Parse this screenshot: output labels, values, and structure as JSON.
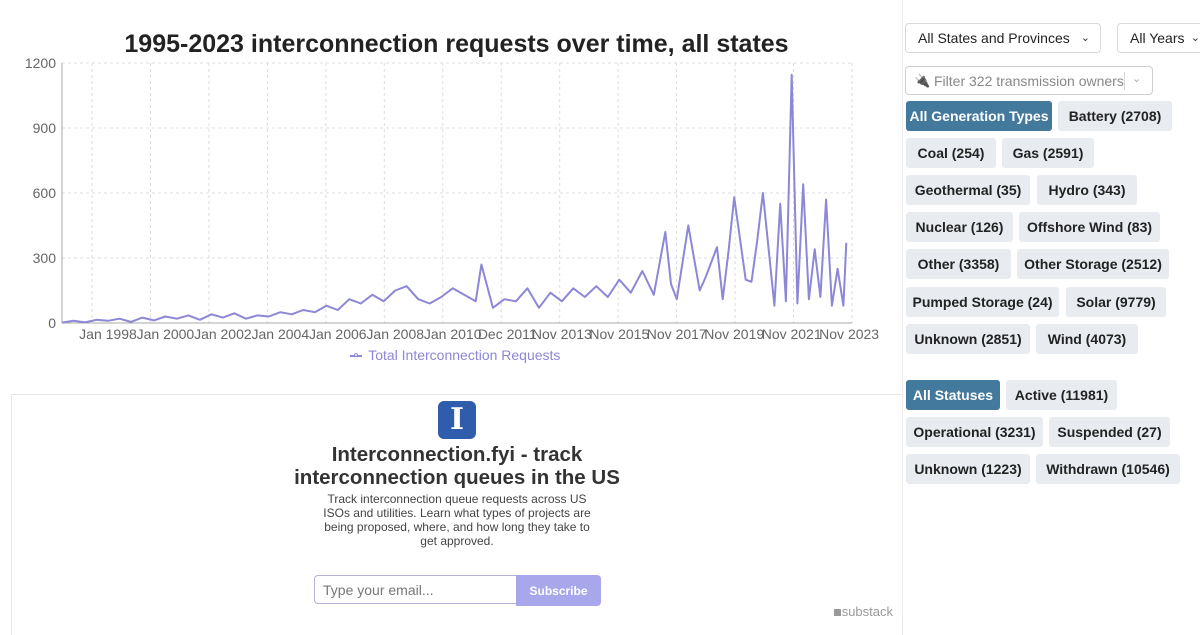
{
  "chart_data": {
    "type": "line",
    "title": "1995-2023 interconnection requests over time, all states",
    "xlabel": "",
    "ylabel": "",
    "ylim": [
      0,
      1200
    ],
    "yticks": [
      0,
      300,
      600,
      900,
      1200
    ],
    "xlim": [
      1996.4,
      2023.9
    ],
    "xticks": [
      {
        "label": "Jan 1998",
        "x": 1998.0
      },
      {
        "label": "Jan 2000",
        "x": 2000.0
      },
      {
        "label": "Jan 2002",
        "x": 2002.0
      },
      {
        "label": "Jan 2004",
        "x": 2004.0
      },
      {
        "label": "Jan 2006",
        "x": 2006.0
      },
      {
        "label": "Jan 2008",
        "x": 2008.0
      },
      {
        "label": "Jan 2010",
        "x": 2010.0
      },
      {
        "label": "Dec 2011",
        "x": 2011.9
      },
      {
        "label": "Nov 2013",
        "x": 2013.8
      },
      {
        "label": "Nov 2015",
        "x": 2015.8
      },
      {
        "label": "Nov 2017",
        "x": 2017.8
      },
      {
        "label": "Nov 2019",
        "x": 2019.8
      },
      {
        "label": "Nov 2021",
        "x": 2021.8
      },
      {
        "label": "Nov 2023",
        "x": 2023.8
      }
    ],
    "grid": true,
    "legend_position": "bottom",
    "series": [
      {
        "name": "Total Interconnection Requests",
        "color": "#8c87d6",
        "x": [
          1996.4,
          1996.8,
          1997.2,
          1997.6,
          1998.0,
          1998.4,
          1998.8,
          1999.2,
          1999.6,
          2000.0,
          2000.4,
          2000.8,
          2001.2,
          2001.6,
          2002.0,
          2002.4,
          2002.8,
          2003.2,
          2003.6,
          2004.0,
          2004.4,
          2004.8,
          2005.2,
          2005.6,
          2006.0,
          2006.4,
          2006.8,
          2007.2,
          2007.6,
          2008.0,
          2008.4,
          2008.8,
          2009.2,
          2009.6,
          2010.0,
          2010.4,
          2010.8,
          2011.0,
          2011.4,
          2011.8,
          2012.2,
          2012.6,
          2013.0,
          2013.4,
          2013.8,
          2014.2,
          2014.6,
          2015.0,
          2015.4,
          2015.8,
          2016.2,
          2016.6,
          2017.0,
          2017.4,
          2017.6,
          2017.8,
          2018.2,
          2018.6,
          2018.8,
          2019.2,
          2019.4,
          2019.6,
          2019.8,
          2020.2,
          2020.4,
          2020.6,
          2020.8,
          2021.2,
          2021.4,
          2021.6,
          2021.8,
          2022.0,
          2022.2,
          2022.4,
          2022.6,
          2022.8,
          2023.0,
          2023.2,
          2023.4,
          2023.6,
          2023.7
        ],
        "values": [
          2,
          10,
          3,
          15,
          10,
          20,
          5,
          25,
          12,
          30,
          20,
          35,
          15,
          40,
          25,
          45,
          20,
          35,
          30,
          50,
          40,
          60,
          50,
          80,
          60,
          110,
          90,
          130,
          100,
          150,
          170,
          110,
          90,
          120,
          160,
          130,
          100,
          270,
          70,
          110,
          100,
          160,
          70,
          140,
          100,
          160,
          120,
          170,
          120,
          200,
          140,
          240,
          130,
          420,
          180,
          110,
          450,
          150,
          210,
          350,
          110,
          330,
          580,
          200,
          190,
          380,
          600,
          80,
          550,
          100,
          1145,
          90,
          640,
          110,
          340,
          120,
          570,
          80,
          250,
          80,
          370
        ]
      }
    ]
  },
  "chart": {
    "title": "1995-2023 interconnection requests over time, all states",
    "legend_label": "Total Interconnection Requests"
  },
  "newsletter": {
    "logo_letter": "I",
    "title": "Interconnection.fyi - track interconnection queues in the US",
    "description": "Track interconnection queue requests across US ISOs and utilities. Learn what types of projects are being proposed, where, and how long they take to get approved.",
    "email_placeholder": "Type your email...",
    "subscribe_label": "Subscribe",
    "brand": "substack"
  },
  "filters": {
    "state_select": "All States and Provinces",
    "year_select": "All Years",
    "owner_filter_placeholder": "Filter 322 transmission owners",
    "generation_types": [
      {
        "label": "All Generation Types",
        "active": true
      },
      {
        "label": "Battery (2708)",
        "active": false
      },
      {
        "label": "Coal (254)",
        "active": false
      },
      {
        "label": "Gas (2591)",
        "active": false
      },
      {
        "label": "Geothermal (35)",
        "active": false
      },
      {
        "label": "Hydro (343)",
        "active": false
      },
      {
        "label": "Nuclear (126)",
        "active": false
      },
      {
        "label": "Offshore Wind (83)",
        "active": false
      },
      {
        "label": "Other (3358)",
        "active": false
      },
      {
        "label": "Other Storage (2512)",
        "active": false
      },
      {
        "label": "Pumped Storage (24)",
        "active": false
      },
      {
        "label": "Solar (9779)",
        "active": false
      },
      {
        "label": "Unknown (2851)",
        "active": false
      },
      {
        "label": "Wind (4073)",
        "active": false
      }
    ],
    "statuses": [
      {
        "label": "All Statuses",
        "active": true
      },
      {
        "label": "Active (11981)",
        "active": false
      },
      {
        "label": "Operational (3231)",
        "active": false
      },
      {
        "label": "Suspended (27)",
        "active": false
      },
      {
        "label": "Unknown (1223)",
        "active": false
      },
      {
        "label": "Withdrawn (10546)",
        "active": false
      }
    ]
  }
}
